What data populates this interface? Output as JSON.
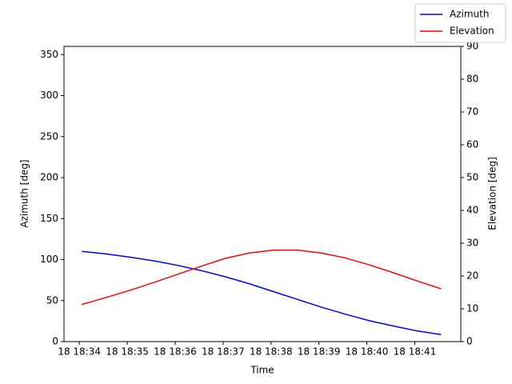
{
  "chart_data": {
    "type": "line",
    "x_label": "Time",
    "y_label": "Azimuth [deg]",
    "y2_label": "Elevation [deg]",
    "x": [
      34.05,
      34.55,
      35.05,
      35.55,
      36.05,
      36.55,
      37.05,
      37.55,
      38.05,
      38.55,
      39.05,
      39.55,
      40.05,
      40.55,
      41.05,
      41.55
    ],
    "series": [
      {
        "name": "Azimuth",
        "color": "#0000ff",
        "axis": "y",
        "values": [
          110,
          107,
          103,
          98.5,
          93,
          86.5,
          79,
          70.5,
          61,
          51.5,
          42,
          33.5,
          25.5,
          19,
          13,
          8.5
        ]
      },
      {
        "name": "Elevation",
        "color": "#ff0000",
        "axis": "y2",
        "values": [
          11.3,
          13.4,
          15.6,
          18,
          20.5,
          23,
          25.4,
          27,
          27.9,
          27.9,
          27,
          25.5,
          23.4,
          21,
          18.5,
          16.1
        ]
      }
    ],
    "xlim": [
      33.68,
      41.96
    ],
    "xticks": [
      {
        "value": 34,
        "label": "18 18:34"
      },
      {
        "value": 35,
        "label": "18 18:35"
      },
      {
        "value": 36,
        "label": "18 18:36"
      },
      {
        "value": 37,
        "label": "18 18:37"
      },
      {
        "value": 38,
        "label": "18 18:38"
      },
      {
        "value": 39,
        "label": "18 18:39"
      },
      {
        "value": 40,
        "label": "18 18:40"
      },
      {
        "value": 41,
        "label": "18 18:41"
      }
    ],
    "ylim": [
      0,
      360
    ],
    "yticks": [
      0,
      50,
      100,
      150,
      200,
      250,
      300,
      350
    ],
    "y2lim": [
      0,
      90
    ],
    "y2ticks": [
      0,
      10,
      20,
      30,
      40,
      50,
      60,
      70,
      80,
      90
    ],
    "legend": "upper-right"
  }
}
